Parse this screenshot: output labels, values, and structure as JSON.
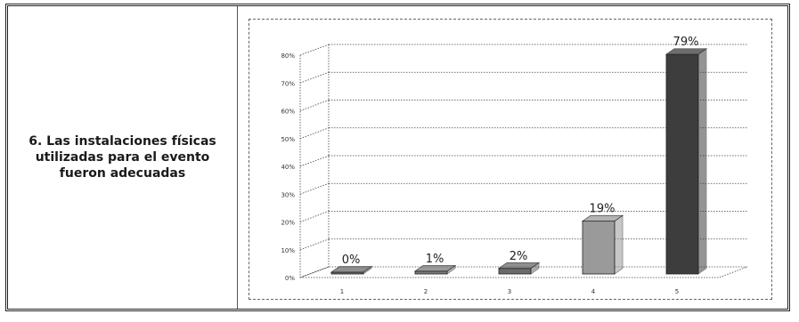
{
  "question": {
    "text": "6. Las instalaciones físicas utilizadas para el evento fueron adecuadas"
  },
  "chart_data": {
    "type": "bar",
    "title": "",
    "xlabel": "",
    "ylabel": "",
    "categories": [
      "1",
      "2",
      "3",
      "4",
      "5"
    ],
    "values": [
      0,
      1,
      2,
      19,
      79
    ],
    "data_labels": [
      "0%",
      "1%",
      "2%",
      "19%",
      "79%"
    ],
    "yticks": [
      "0%",
      "10%",
      "20%",
      "30%",
      "40%",
      "50%",
      "60%",
      "70%",
      "80%"
    ],
    "ylim": [
      0,
      80
    ],
    "grid": true,
    "legend": "none",
    "bar_colors": [
      "#6a6a6a",
      "#7a7a7a",
      "#6a6a6a",
      "#9a9a9a",
      "#3d3d3d"
    ]
  }
}
